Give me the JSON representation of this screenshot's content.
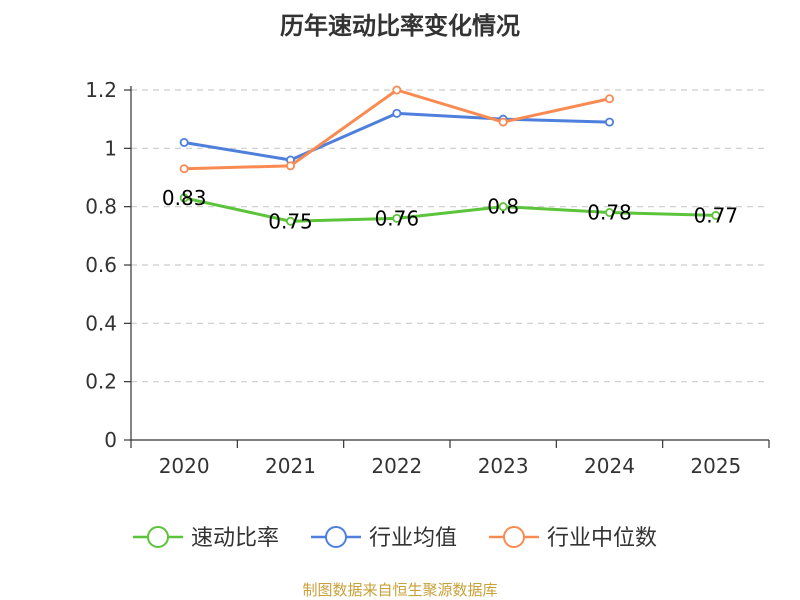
{
  "chart_data": {
    "type": "line",
    "title": "历年速动比率变化情况",
    "categories": [
      "2020",
      "2021",
      "2022",
      "2023",
      "2024",
      "2025"
    ],
    "ylim": [
      0,
      1.2
    ],
    "yticks": [
      "0",
      "0.2",
      "0.4",
      "0.6",
      "0.8",
      "1",
      "1.2"
    ],
    "ytick_values": [
      0,
      0.2,
      0.4,
      0.6,
      0.8,
      1.0,
      1.2
    ],
    "grid": true,
    "legend_position": "bottom",
    "series": [
      {
        "name": "速动比率",
        "color": "#5bc43a",
        "values": [
          0.83,
          0.75,
          0.76,
          0.8,
          0.78,
          0.77
        ],
        "labels": [
          "0.83",
          "0.75",
          "0.76",
          "0.8",
          "0.78",
          "0.77"
        ],
        "show_labels": true
      },
      {
        "name": "行业均值",
        "color": "#4e7fdc",
        "values": [
          1.02,
          0.96,
          1.12,
          1.1,
          1.09,
          null
        ],
        "show_labels": false
      },
      {
        "name": "行业中位数",
        "color": "#f98b52",
        "values": [
          0.93,
          0.94,
          1.2,
          1.09,
          1.17,
          null
        ],
        "show_labels": false
      }
    ]
  },
  "source": "制图数据来自恒生聚源数据库"
}
